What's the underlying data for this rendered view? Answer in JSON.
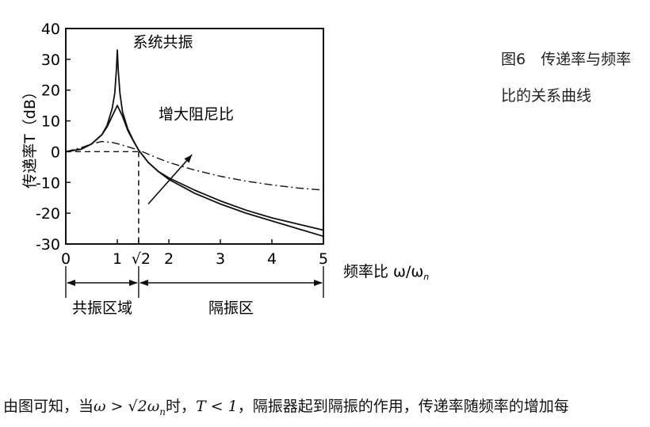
{
  "chart_data": {
    "type": "line",
    "title": "",
    "xlabel": "频率比 ω/ω",
    "xlabel_sub": "n",
    "ylabel": "传递率T（dB）",
    "xlim": [
      0,
      5
    ],
    "ylim": [
      -30,
      40
    ],
    "grid": false,
    "x_ticks": [
      0,
      1,
      2,
      3,
      4,
      5
    ],
    "x_tick_labels": [
      "0",
      "1",
      "2",
      "3",
      "4",
      "5"
    ],
    "x_special_tick": {
      "value": 1.414,
      "label": "√2"
    },
    "y_ticks": [
      40,
      30,
      20,
      10,
      0,
      -10,
      -20,
      -30
    ],
    "y_tick_labels": [
      "40",
      "30",
      "20",
      "10",
      "0",
      "-10",
      "-20",
      "-30"
    ],
    "series": [
      {
        "style": "solid",
        "x": [
          0,
          0.3,
          0.5,
          0.7,
          0.8,
          0.9,
          0.95,
          0.98,
          1.0,
          1.02,
          1.05,
          1.1,
          1.2,
          1.3,
          1.414,
          1.6,
          1.8,
          2.0,
          2.5,
          3.0,
          3.5,
          4.0,
          4.5,
          5.0
        ],
        "y": [
          0,
          0.8,
          2.5,
          5.5,
          8.5,
          14,
          19,
          26,
          33,
          26,
          19,
          13,
          7.5,
          4,
          0.5,
          -3.5,
          -6.5,
          -9,
          -13.5,
          -17,
          -20,
          -22.5,
          -25,
          -27.5
        ]
      },
      {
        "style": "solid",
        "x": [
          0,
          0.3,
          0.5,
          0.7,
          0.8,
          0.9,
          1.0,
          1.1,
          1.2,
          1.3,
          1.414,
          1.6,
          1.8,
          2.0,
          2.5,
          3.0,
          3.5,
          4.0,
          4.5,
          5.0
        ],
        "y": [
          0,
          0.8,
          2.5,
          5.5,
          8.0,
          11.5,
          15,
          11.5,
          7,
          3.8,
          0.5,
          -3.5,
          -6.5,
          -8.5,
          -12.5,
          -16,
          -19,
          -21.5,
          -23.5,
          -25.5
        ]
      },
      {
        "style": "dash-dot",
        "x": [
          0,
          0.3,
          0.5,
          0.7,
          0.9,
          1.0,
          1.2,
          1.414,
          1.8,
          2.0,
          2.5,
          3.0,
          3.5,
          4.0,
          4.5,
          5.0
        ],
        "y": [
          0,
          1.3,
          2.5,
          3.3,
          3.0,
          2.6,
          1.6,
          0.5,
          -2.2,
          -3.5,
          -6,
          -8,
          -9.6,
          -10.8,
          -11.8,
          -12.5
        ]
      },
      {
        "style": "dashed",
        "x": [
          0,
          0.3,
          0.6,
          1.0,
          1.2,
          1.414
        ],
        "y": [
          0,
          0,
          0,
          0,
          0,
          0
        ]
      }
    ],
    "annotations": [
      {
        "text": "系统共振",
        "at": [
          1.3,
          34
        ]
      },
      {
        "text": "增大阻尼比",
        "at": [
          1.8,
          10.5
        ]
      }
    ],
    "regions": [
      {
        "label": "共振区域",
        "x_range": [
          0,
          1.414
        ]
      },
      {
        "label": "隔振区",
        "x_range": [
          1.414,
          5
        ]
      }
    ]
  },
  "caption": {
    "line1": "图6　传递率与频率",
    "line2": "比的关系曲线"
  },
  "body_text": {
    "part1": "由图可知，当",
    "math1": "ω > √2ω",
    "math1_sub": "n",
    "part2": "时，",
    "math2": "T < 1",
    "part3": "，隔振器起到隔振的作用，传递率随频率的增加每"
  }
}
